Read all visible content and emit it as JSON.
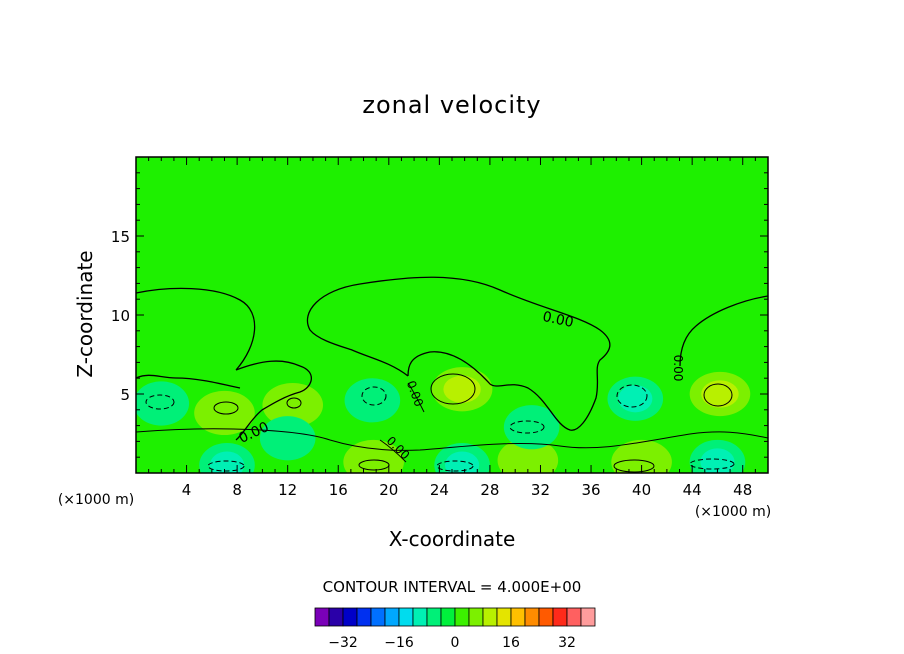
{
  "chart_data": {
    "type": "heatmap",
    "title": "zonal velocity",
    "xlabel": "X-coordinate",
    "ylabel": "Z-coordinate",
    "x_units": "(×1000 m)",
    "x_units_right": "(×1000 m)",
    "xlim": [
      0,
      50
    ],
    "ylim": [
      0,
      20
    ],
    "x_ticks": [
      4,
      8,
      12,
      16,
      20,
      24,
      28,
      32,
      36,
      40,
      44,
      48
    ],
    "y_ticks": [
      5,
      10,
      15
    ],
    "contour_interval_text": "CONTOUR INTERVAL = 4.000E+00",
    "zero_contour_label": "0.00",
    "colorbar": {
      "levels": [
        -36,
        -32,
        -28,
        -24,
        -20,
        -16,
        -12,
        -8,
        -4,
        0,
        4,
        8,
        12,
        16,
        20,
        24,
        28,
        32,
        36
      ],
      "tick_labels": [
        "−32",
        "−16",
        "0",
        "16",
        "32"
      ],
      "tick_values": [
        -32,
        -16,
        0,
        16,
        32
      ],
      "colors": [
        "#7a00b8",
        "#2a00a8",
        "#0000c8",
        "#0030f0",
        "#0070ff",
        "#00a8ff",
        "#00dcee",
        "#00f0b4",
        "#00f078",
        "#00f03c",
        "#3cf000",
        "#7cf000",
        "#b8f000",
        "#e4e400",
        "#ffc000",
        "#ff8c00",
        "#ff5a00",
        "#ff2a1a",
        "#ff6060",
        "#ff9c9c"
      ]
    },
    "background_level_color": "#1ef000",
    "features": [
      {
        "kind": "positive",
        "x": 25.8,
        "z": 5.3,
        "peak": 10
      },
      {
        "kind": "positive",
        "x": 46.2,
        "z": 5.0,
        "peak": 8
      },
      {
        "kind": "positive",
        "x": 7.0,
        "z": 3.8,
        "peak": 6
      },
      {
        "kind": "positive",
        "x": 12.4,
        "z": 4.3,
        "peak": 4
      },
      {
        "kind": "positive",
        "x": 40.0,
        "z": 0.7,
        "peak": 6
      },
      {
        "kind": "positive",
        "x": 18.8,
        "z": 0.7,
        "peak": 5
      },
      {
        "kind": "positive",
        "x": 31.0,
        "z": 0.8,
        "peak": 5
      },
      {
        "kind": "negative",
        "x": 2.0,
        "z": 4.4,
        "peak": -6
      },
      {
        "kind": "negative",
        "x": 18.7,
        "z": 4.6,
        "peak": -7
      },
      {
        "kind": "negative",
        "x": 39.5,
        "z": 4.7,
        "peak": -8
      },
      {
        "kind": "negative",
        "x": 31.3,
        "z": 2.9,
        "peak": -7
      },
      {
        "kind": "negative",
        "x": 7.2,
        "z": 0.5,
        "peak": -9
      },
      {
        "kind": "negative",
        "x": 25.8,
        "z": 0.5,
        "peak": -9
      },
      {
        "kind": "negative",
        "x": 46.0,
        "z": 0.7,
        "peak": -8
      },
      {
        "kind": "negative",
        "x": 12.0,
        "z": 2.2,
        "peak": -4
      }
    ]
  }
}
